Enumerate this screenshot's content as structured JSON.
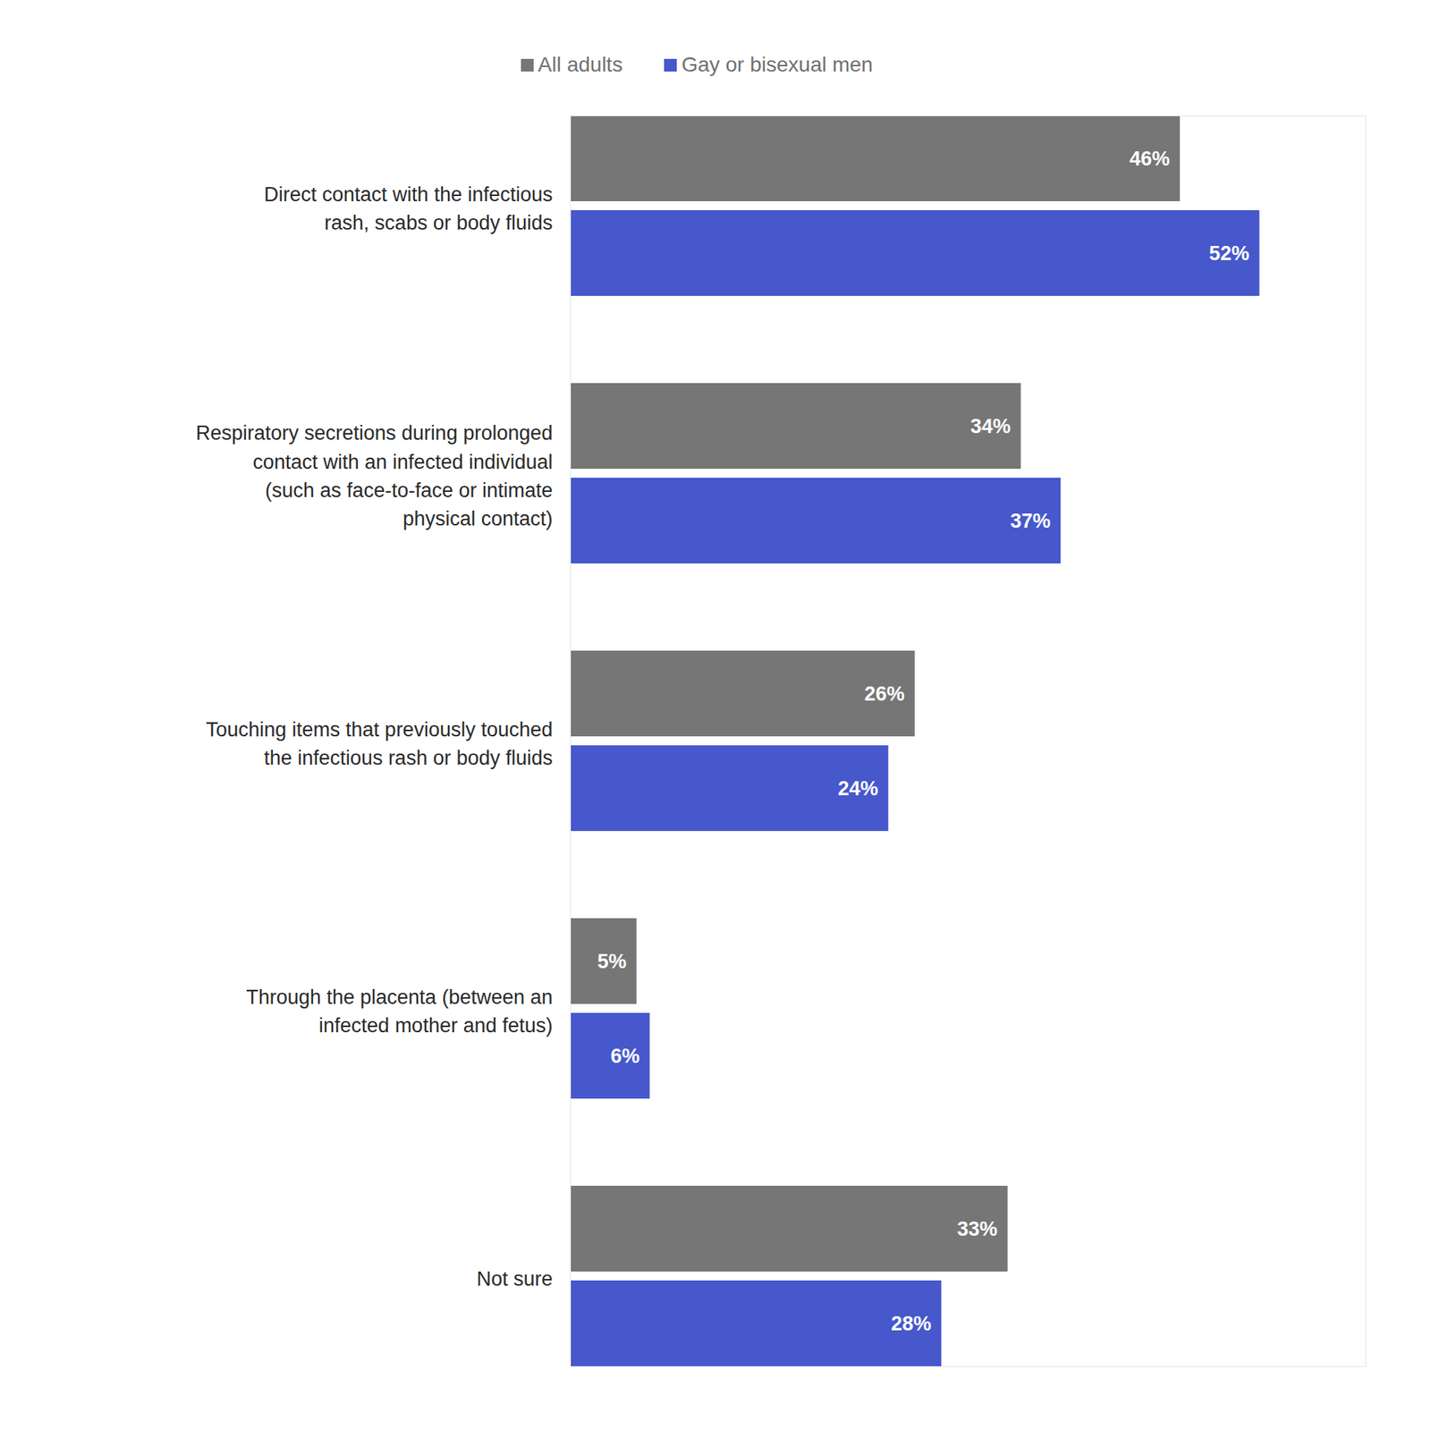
{
  "chart_data": {
    "type": "bar",
    "orientation": "horizontal",
    "categories": [
      "Direct contact with the infectious rash, scabs or body fluids",
      "Respiratory secretions during prolonged contact with an infected individual (such as face-to-face or intimate physical contact)",
      "Touching items that previously touched the infectious rash or body fluids",
      "Through the placenta (between an infected mother and fetus)",
      "Not sure"
    ],
    "series": [
      {
        "name": "All adults",
        "color": "#767676",
        "values": [
          46,
          34,
          26,
          5,
          33
        ],
        "value_labels": [
          "46%",
          "34%",
          "26%",
          "5%",
          "33%"
        ]
      },
      {
        "name": "Gay or bisexual men",
        "color": "#4658cc",
        "values": [
          52,
          37,
          24,
          6,
          28
        ],
        "value_labels": [
          "52%",
          "37%",
          "24%",
          "6%",
          "28%"
        ]
      }
    ],
    "xlim": [
      0,
      60
    ],
    "data_labels": true,
    "tick_labels": "y",
    "legend": "top"
  }
}
